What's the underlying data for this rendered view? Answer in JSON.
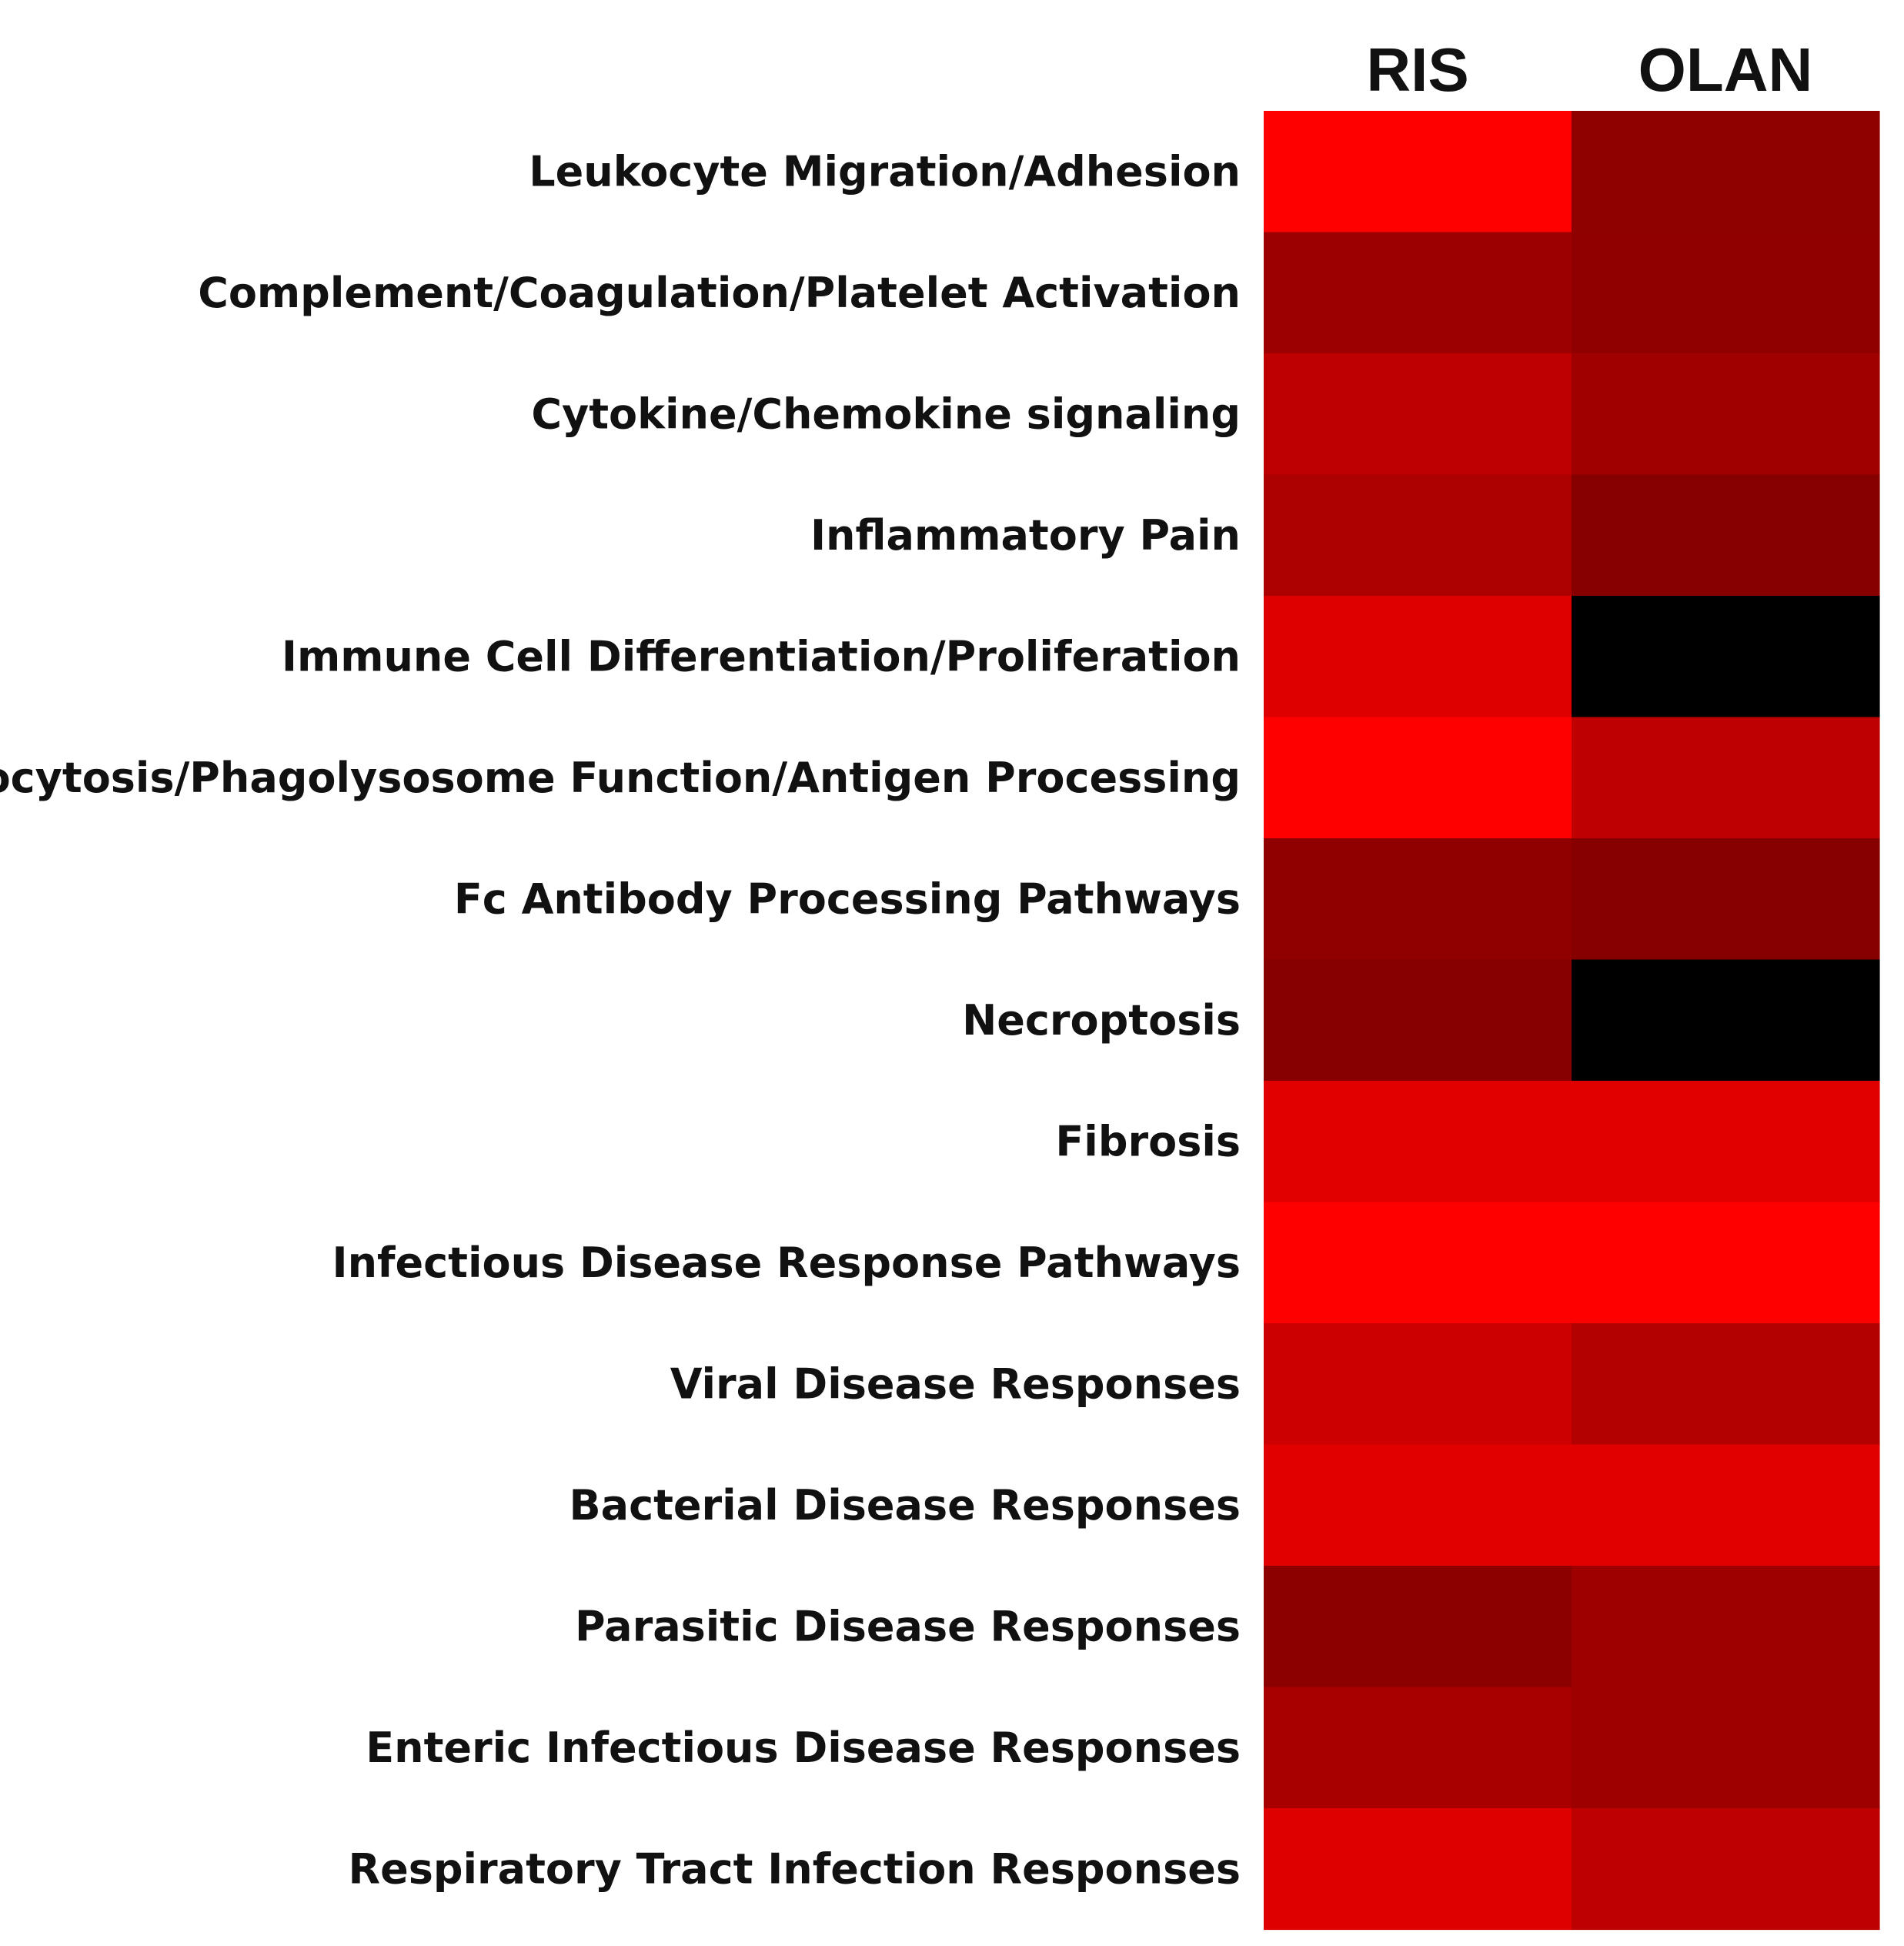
{
  "chart_data": {
    "type": "heatmap",
    "title": "",
    "xlabel": "",
    "ylabel": "",
    "columns": [
      "RIS",
      "OLAN"
    ],
    "rows": [
      "Leukocyte Migration/Adhesion",
      "Complement/Coagulation/Platelet Activation",
      "Cytokine/Chemokine signaling",
      "Inflammatory Pain",
      "Immune Cell Differentiation/Proliferation",
      "Phagocytosis/Phagolysosome Function/Antigen Processing",
      "Fc Antibody Processing Pathways",
      "Necroptosis",
      "Fibrosis",
      "Infectious Disease Response Pathways",
      "Viral Disease Responses",
      "Bacterial Disease Responses",
      "Parasitic Disease Responses",
      "Enteric Infectious Disease Responses",
      "Respiratory Tract Infection Responses"
    ],
    "values": [
      [
        1.0,
        0.56
      ],
      [
        0.61,
        0.57
      ],
      [
        0.75,
        0.63
      ],
      [
        0.68,
        0.53
      ],
      [
        0.87,
        0.0
      ],
      [
        1.0,
        0.75
      ],
      [
        0.57,
        0.53
      ],
      [
        0.53,
        0.0
      ],
      [
        0.88,
        0.88
      ],
      [
        1.0,
        1.0
      ],
      [
        0.8,
        0.7
      ],
      [
        0.88,
        0.88
      ],
      [
        0.55,
        0.62
      ],
      [
        0.66,
        0.62
      ],
      [
        0.87,
        0.74
      ]
    ],
    "color_scale": {
      "min_color": "#000000",
      "max_color": "#ff0000"
    },
    "legend": "none",
    "grid": false
  }
}
